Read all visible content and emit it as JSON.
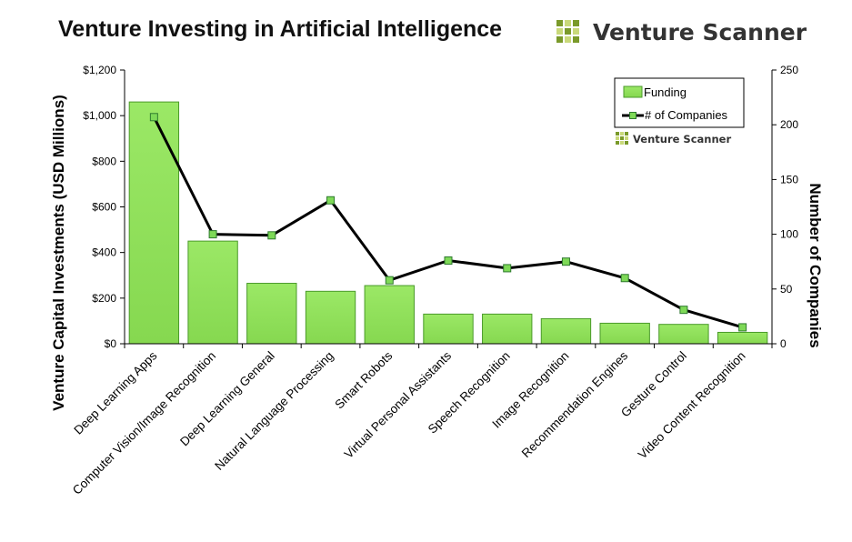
{
  "chart_data": {
    "type": "bar",
    "title": "Venture Investing in Artificial Intelligence",
    "brand": "Venture Scanner",
    "watermark": "Venture Scanner",
    "categories": [
      "Deep Learning Apps",
      "Computer Vision/Image Recognition",
      "Deep Learning General",
      "Natural Language Processing",
      "Smart Robots",
      "Virtual Personal Assistants",
      "Speech Recognition",
      "Image Recognition",
      "Recommendation Engines",
      "Gesture Control",
      "Video Content Recognition"
    ],
    "series": [
      {
        "name": "Funding",
        "type": "bar",
        "axis": "left",
        "values": [
          1060,
          450,
          265,
          230,
          255,
          130,
          130,
          110,
          90,
          85,
          50
        ]
      },
      {
        "name": "# of Companies",
        "type": "line",
        "axis": "right",
        "values": [
          207,
          100,
          99,
          131,
          58,
          76,
          69,
          75,
          60,
          31,
          15
        ]
      }
    ],
    "ylabel": "Venture Capital Investments (USD Millions)",
    "ylabel_right": "Number of Companies",
    "xlabel": "",
    "ylim": [
      0,
      1200
    ],
    "ylim_right": [
      0,
      250
    ],
    "yticks": [
      0,
      200,
      400,
      600,
      800,
      1000,
      1200
    ],
    "ytick_labels": [
      "$0",
      "$200",
      "$400",
      "$600",
      "$800",
      "$1,000",
      "$1,200"
    ],
    "yticks_right": [
      0,
      50,
      100,
      150,
      200,
      250
    ],
    "ytick_labels_right": [
      "0",
      "50",
      "100",
      "150",
      "200",
      "250"
    ],
    "grid": false,
    "legend_position": "top-right",
    "colors": {
      "bar_fill": "#8fe05a",
      "bar_stroke": "#4a9a2a",
      "line": "#000000",
      "marker_fill": "#7ed957",
      "marker_stroke": "#2f7a2f",
      "logo_dark": "#7a9a2a",
      "logo_light": "#c9d97a"
    }
  }
}
